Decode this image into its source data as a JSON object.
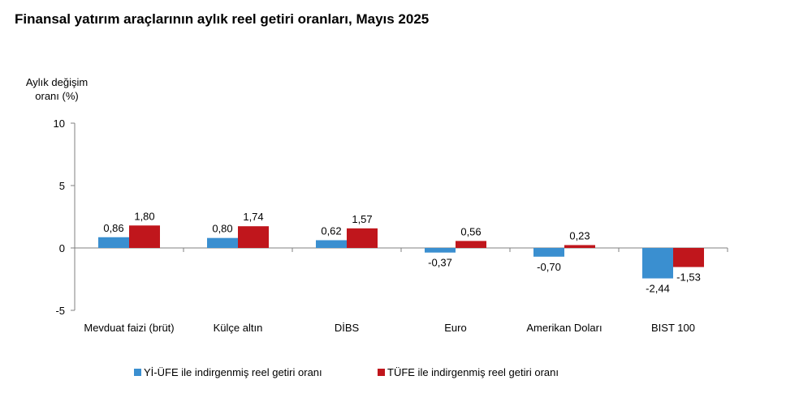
{
  "chart_data": {
    "type": "bar",
    "title": "Finansal yatırım araçlarının aylık reel getiri oranları, Mayıs 2025",
    "ylabel": [
      "Aylık değişim",
      "oranı (%)"
    ],
    "xlabel": "",
    "ylim": [
      -5,
      10
    ],
    "yticks": [
      -5,
      0,
      5,
      10
    ],
    "categories": [
      "Mevduat faizi (brüt)",
      "Külçe altın",
      "DİBS",
      "Euro",
      "Amerikan Doları",
      "BIST 100"
    ],
    "series": [
      {
        "name": "Yİ-ÜFE ile indirgenmiş reel getiri oranı",
        "color": "#3a8fd0",
        "values": [
          0.86,
          0.8,
          0.62,
          -0.37,
          -0.7,
          -2.44
        ],
        "labels": [
          "0,86",
          "0,80",
          "0,62",
          "-0,37",
          "-0,70",
          "-2,44"
        ]
      },
      {
        "name": "TÜFE ile indirgenmiş reel getiri oranı",
        "color": "#c0161c",
        "values": [
          1.8,
          1.74,
          1.57,
          0.56,
          0.23,
          -1.53
        ],
        "labels": [
          "1,80",
          "1,74",
          "1,57",
          "0,56",
          "0,23",
          "-1,53"
        ]
      }
    ],
    "legend_position": "bottom",
    "grid": false
  }
}
